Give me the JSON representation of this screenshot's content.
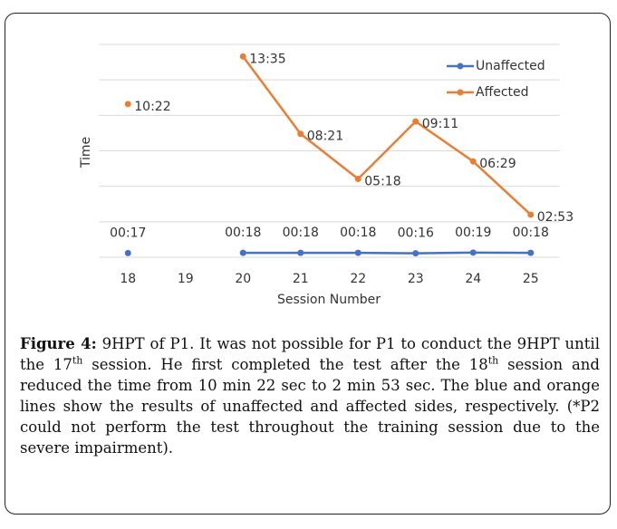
{
  "chart_data": {
    "type": "line",
    "xlabel": "Session Number",
    "ylabel": "Time",
    "categories": [
      "18",
      "19",
      "20",
      "21",
      "22",
      "23",
      "24",
      "25"
    ],
    "series": [
      {
        "name": "Unaffected",
        "color": "#4472c4",
        "values": [
          17,
          null,
          18,
          18,
          18,
          16,
          19,
          18
        ],
        "value_labels": [
          "00:17",
          null,
          "00:18",
          "00:18",
          "00:18",
          "00:16",
          "00:19",
          "00:18"
        ]
      },
      {
        "name": "Affected",
        "color": "#ed7d31",
        "values": [
          622,
          null,
          815,
          501,
          318,
          551,
          389,
          173
        ],
        "value_labels": [
          "10:22",
          null,
          "13:35",
          "08:21",
          "05:18",
          "09:11",
          "06:29",
          "02:53"
        ]
      }
    ],
    "ylim": [
      0,
      864
    ],
    "yticks": [
      0,
      144,
      288,
      432,
      576,
      720,
      864
    ],
    "grid": true,
    "legend": "upper right"
  },
  "caption": {
    "label": "Figure 4:",
    "parts": [
      " 9HPT of P1. It was not possible for P1 to conduct the 9HPT until the 17",
      "th",
      " session. He first completed the test after the 18",
      "th",
      " session and reduced the time from 10 min 22 sec to 2 min 53 sec. The blue and orange lines show the results of unaffected and affected sides, respectively. (*P2 could not perform the test throughout the training session due to the severe impairment)."
    ]
  }
}
